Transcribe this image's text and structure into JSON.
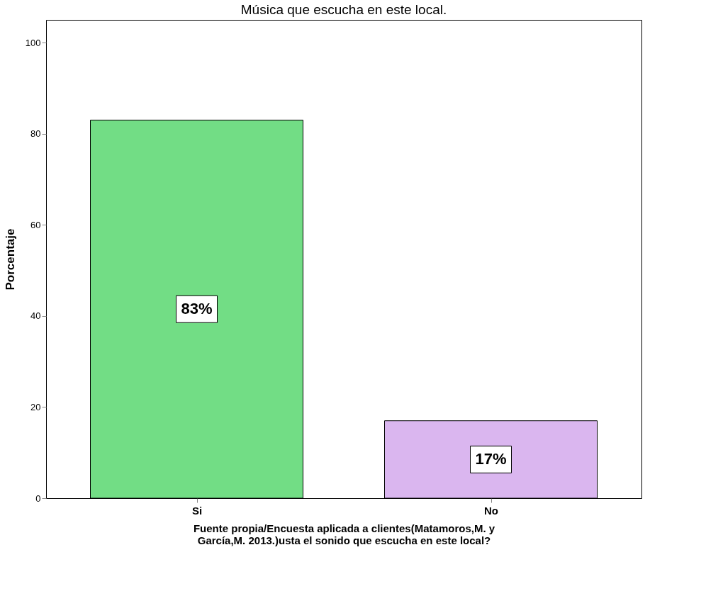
{
  "chart_data": {
    "type": "bar",
    "title": "Música que escucha en este local.",
    "categories": [
      "Si",
      "No"
    ],
    "values": [
      83,
      17
    ],
    "value_labels": [
      "83%",
      "17%"
    ],
    "colors": [
      "#72dd85",
      "#dab6ef"
    ],
    "ylabel": "Porcentaje",
    "xlabel": "Fuente propia/Encuesta aplicada a clientes(Matamoros,M. y García,M. 2013.)usta el sonido que escucha en este local?",
    "ylim": [
      0,
      105
    ],
    "yticks": [
      0,
      20,
      40,
      60,
      80,
      100
    ],
    "grid": false
  }
}
